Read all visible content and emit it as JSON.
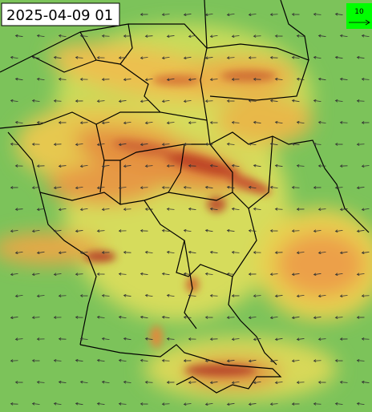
{
  "map": {
    "timestamp": "2025-04-09 01",
    "legend": {
      "label": "10"
    }
  }
}
